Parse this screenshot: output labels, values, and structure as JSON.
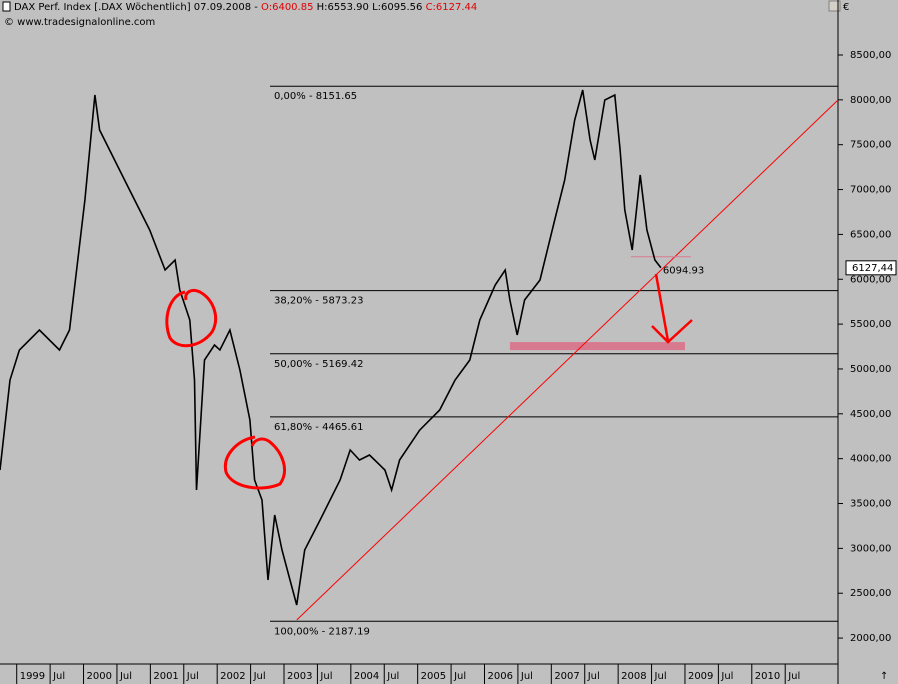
{
  "header": {
    "title": "DAX Perf. Index [.DAX  Wöchentlich] 07.09.2008 - ",
    "open": "O:6400.85",
    "high": "H:6553.90",
    "low": "L:6095.56",
    "close": "C:6127.44",
    "copyright": "© www.tradesignalonline.com",
    "currency": "€"
  },
  "chart_data": {
    "type": "line",
    "color": "#000000",
    "x": [
      1998.75,
      1998.9,
      1999.04,
      1999.34,
      1999.64,
      1999.79,
      2000.02,
      2000.17,
      2000.24,
      2000.39,
      2000.69,
      2000.99,
      2001.22,
      2001.37,
      2001.44,
      2001.59,
      2001.66,
      2001.69,
      2001.81,
      2001.96,
      2002.04,
      2002.19,
      2002.34,
      2002.49,
      2002.56,
      2002.67,
      2002.76,
      2002.86,
      2002.97,
      2003.09,
      2003.19,
      2003.31,
      2003.54,
      2003.84,
      2003.99,
      2004.13,
      2004.28,
      2004.51,
      2004.61,
      2004.73,
      2005.03,
      2005.33,
      2005.56,
      2005.78,
      2005.93,
      2006.16,
      2006.31,
      2006.38,
      2006.49,
      2006.6,
      2006.83,
      2007.05,
      2007.2,
      2007.35,
      2007.47,
      2007.58,
      2007.65,
      2007.8,
      2007.95,
      2008.03,
      2008.1,
      2008.21,
      2008.33,
      2008.43,
      2008.55,
      2008.64
    ],
    "values": [
      3874,
      4877,
      5211,
      5434,
      5211,
      5434,
      6884,
      8054,
      7664,
      7441,
      6995,
      6549,
      6103,
      6215,
      5880,
      5546,
      4877,
      3651,
      5100,
      5267,
      5211,
      5434,
      4988,
      4431,
      3762,
      3539,
      2647,
      3372,
      2982,
      2647,
      2369,
      2982,
      3316,
      3762,
      4097,
      3985,
      4041,
      3874,
      3651,
      3985,
      4319,
      4542,
      4877,
      5100,
      5546,
      5936,
      6103,
      5769,
      5379,
      5769,
      5992,
      6661,
      7106,
      7775,
      8110,
      7552,
      7329,
      7998,
      8054,
      7441,
      6772,
      6326,
      7162,
      6549,
      6215,
      6127.44
    ],
    "xlim": [
      1998.75,
      2011.29
    ],
    "ylim": [
      1711,
      8957
    ],
    "xticks": [
      1999,
      {
        "value": 1999.5,
        "label": "Jul"
      },
      2000,
      {
        "value": 2000.5,
        "label": "Jul"
      },
      2001,
      {
        "value": 2001.5,
        "label": "Jul"
      },
      2002,
      {
        "value": 2002.5,
        "label": "Jul"
      },
      2003,
      {
        "value": 2003.5,
        "label": "Jul"
      },
      2004,
      {
        "value": 2004.5,
        "label": "Jul"
      },
      2005,
      {
        "value": 2005.5,
        "label": "Jul"
      },
      2006,
      {
        "value": 2006.5,
        "label": "Jul"
      },
      2007,
      {
        "value": 2007.5,
        "label": "Jul"
      },
      2008,
      {
        "value": 2008.5,
        "label": "Jul"
      },
      2009,
      {
        "value": 2009.5,
        "label": "Jul"
      },
      2010,
      {
        "value": 2010.5,
        "label": "Jul"
      }
    ],
    "yticks": [
      {
        "value": 2000,
        "label": "2000,00"
      },
      {
        "value": 2500,
        "label": "2500,00"
      },
      {
        "value": 3000,
        "label": "3000,00"
      },
      {
        "value": 3500,
        "label": "3500,00"
      },
      {
        "value": 4000,
        "label": "4000,00"
      },
      {
        "value": 4500,
        "label": "4500,00"
      },
      {
        "value": 5000,
        "label": "5000,00"
      },
      {
        "value": 5500,
        "label": "5500,00"
      },
      {
        "value": 6000,
        "label": "6000,00"
      },
      {
        "value": 6500,
        "label": "6500,00"
      },
      {
        "value": 7000,
        "label": "7000,00"
      },
      {
        "value": 7500,
        "label": "7500,00"
      },
      {
        "value": 8000,
        "label": "8000,00"
      },
      {
        "value": 8500,
        "label": "8500,00"
      }
    ],
    "fib_levels": [
      {
        "value": 8151.65,
        "label": "0,00% - 8151.65"
      },
      {
        "value": 5873.23,
        "label": "38,20% - 5873.23"
      },
      {
        "value": 5169.42,
        "label": "50,00% - 5169.42"
      },
      {
        "value": 4465.61,
        "label": "61,80% - 4465.61"
      },
      {
        "value": 2187.19,
        "label": "100,00% - 2187.19"
      }
    ],
    "last_price": {
      "value": 6127.44,
      "label": "6127,44"
    },
    "annotation": 6094.93,
    "trendline": {
      "x": [
        2003.19,
        2011.29
      ],
      "y": [
        2201,
        7998
      ],
      "color": "#ff0000"
    },
    "zone": {
      "x": [
        2006.38,
        2009.0
      ],
      "y": [
        5210,
        5300
      ],
      "color": "#d87a8f"
    }
  }
}
